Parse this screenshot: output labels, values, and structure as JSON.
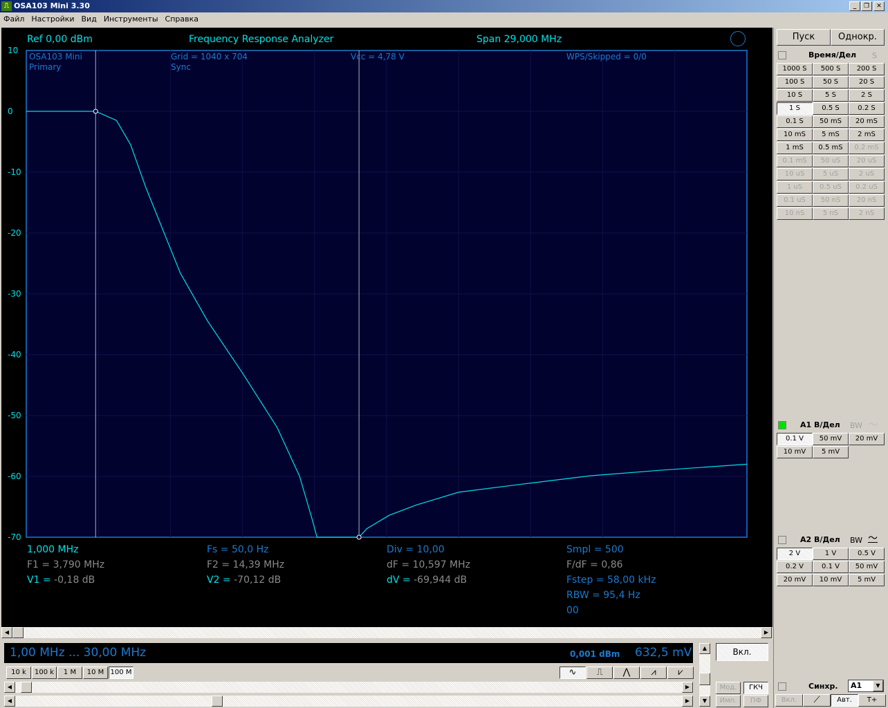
{
  "window": {
    "title": "OSA103 Mini 3.30",
    "controls": [
      "_",
      "❐",
      "✕"
    ]
  },
  "menu": [
    "Файл",
    "Настройки",
    "Вид",
    "Инструменты",
    "Справка"
  ],
  "scope": {
    "ref": "Ref  0,00 dBm",
    "mode": "Frequency Response Analyzer",
    "span": "Span 29,000 MHz",
    "info": {
      "device": "OSA103 Mini",
      "channel": "Primary",
      "grid": "Grid = 1040 x 704",
      "sync": "Sync",
      "vcc": "Vcc = 4,78 V",
      "wps": "WPS/Skipped  = 0/0"
    },
    "readouts": {
      "col1": [
        "1,000 MHz",
        "F1 = 3,790 MHz",
        "V1 = ",
        "-0,18 dB"
      ],
      "col2": [
        "Fs = 50,0 Hz",
        "F2 = 14,39 MHz",
        "V2 = ",
        "-70,12 dB"
      ],
      "col3": [
        "Div = 10,00",
        "dF = 10,597 MHz",
        "dV = ",
        "-69,944 dB"
      ],
      "col4": [
        "Smpl = 500",
        "F/dF = 0,86",
        "Fstep = 58,00 kHz",
        "RBW = 95,4 Hz",
        "00"
      ]
    }
  },
  "chart_data": {
    "type": "line",
    "ylim": [
      -70,
      10
    ],
    "xlim": [
      1,
      30
    ],
    "yticks": [
      "10",
      "0",
      "-10",
      "-20",
      "-30",
      "-40",
      "-50",
      "-60",
      "-70"
    ],
    "cursors_mhz": [
      3.79,
      14.39
    ],
    "trace_color": "#00e0e8",
    "x": [
      1,
      3.79,
      4.63,
      5.2,
      5.8,
      6.35,
      7.2,
      8.3,
      9.7,
      11.1,
      12.0,
      12.5,
      12.7,
      14.39,
      14.7,
      15.6,
      16.7,
      18.4,
      20.9,
      23.7,
      26.5,
      30
    ],
    "y": [
      0,
      0,
      -1.5,
      -5.5,
      -12.4,
      -18,
      -26.6,
      -34.5,
      -43,
      -52,
      -60,
      -67,
      -70,
      -70,
      -68.6,
      -66.4,
      -64.7,
      -62.6,
      -61.3,
      -59.9,
      -59,
      -58
    ]
  },
  "gen": {
    "range": "1,00 MHz  ...  30,00 MHz",
    "level_dbm": "0,001 dBm",
    "level_mv": "632,5 mV",
    "ranges": [
      "10 k",
      "100 k",
      "1 M",
      "10 M",
      "100 M"
    ],
    "selected_range": "100 M",
    "waves": [
      "sine",
      "square",
      "triangle",
      "saw-up",
      "saw-down"
    ],
    "on": "Вкл.",
    "mod": "Мод.",
    "gkch": "ГКЧ",
    "imp": "Имп.",
    "pf": "ПФ"
  },
  "right": {
    "start": "Пуск",
    "single": "Однокр.",
    "time_title": "Время/Дел",
    "time_unit": "S",
    "time": [
      "1000 S",
      "500 S",
      "200 S",
      "100 S",
      "50 S",
      "20 S",
      "10 S",
      "5 S",
      "2 S",
      "1 S",
      "0.5 S",
      "0.2 S",
      "0.1 S",
      "50 mS",
      "20 mS",
      "10 mS",
      "5 mS",
      "2 mS",
      "1 mS",
      "0.5 mS",
      "0.2 mS",
      "0.1 mS",
      "50 uS",
      "20 uS",
      "10 uS",
      "5 uS",
      "2 uS",
      "1 uS",
      "0.5 uS",
      "0.2 uS",
      "0.1 uS",
      "50 nS",
      "20 nS",
      "10 nS",
      "5 nS",
      "2 nS"
    ],
    "time_selected": "1 S",
    "a1_title": "A1 В/Дел",
    "bw": "BW",
    "a1": [
      "0.1 V",
      "50 mV",
      "20 mV",
      "10 mV",
      "5 mV"
    ],
    "a1_selected": "0.1 V",
    "a1_color": "#00e000",
    "a2_title": "A2 В/Дел",
    "a2": [
      "2 V",
      "1 V",
      "0.5 V",
      "0.2 V",
      "0.1 V",
      "50 mV",
      "20 mV",
      "10 mV",
      "5 mV"
    ],
    "a2_selected": "2 V",
    "sync_title": "Синхр.",
    "sync_src": "A1",
    "sync_on": "Вкл.",
    "auto": "Авт.",
    "tplus": "T+"
  }
}
